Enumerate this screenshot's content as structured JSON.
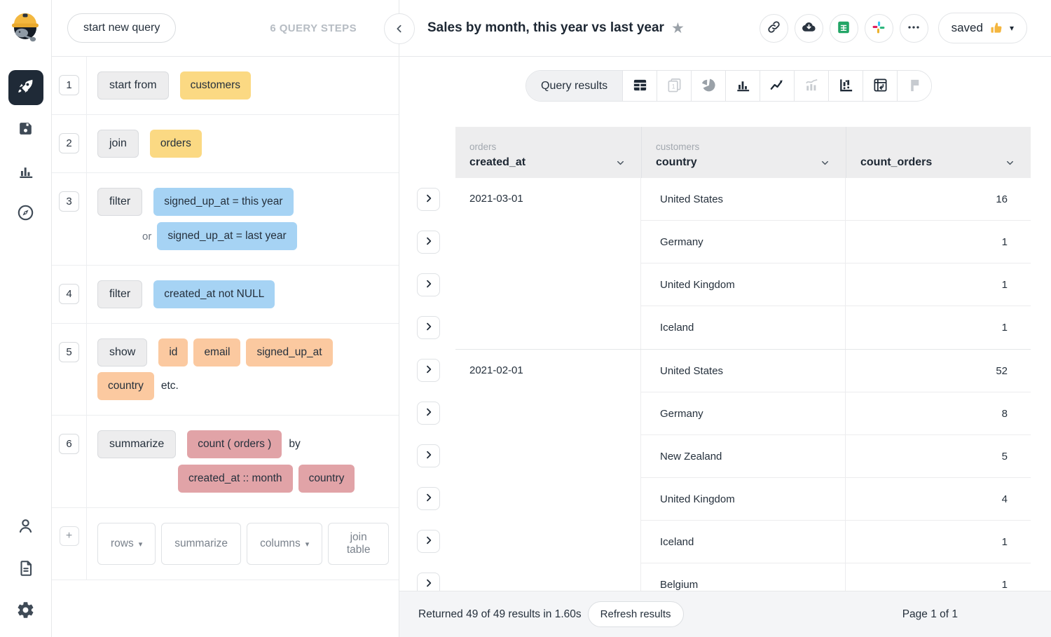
{
  "colors": {
    "yellow": "#fbd983",
    "blue": "#a6d3f4",
    "peach": "#fbc9a0",
    "rose": "#e1a3a7",
    "accent_green": "#23a566",
    "rail_active": "#1f2a37"
  },
  "rail": {
    "top_items": [
      {
        "name": "queries",
        "icon": "rocket",
        "active": true
      },
      {
        "name": "saved-items",
        "icon": "floppy",
        "active": false
      },
      {
        "name": "charts",
        "icon": "bar-chart",
        "active": false
      },
      {
        "name": "explore",
        "icon": "compass",
        "active": false
      }
    ],
    "bottom_items": [
      {
        "name": "account",
        "icon": "person"
      },
      {
        "name": "docs",
        "icon": "document"
      },
      {
        "name": "settings",
        "icon": "gear"
      }
    ]
  },
  "left_panel": {
    "new_query_label": "start new query",
    "steps_count_label": "6 QUERY STEPS",
    "steps": [
      {
        "num": "1",
        "rows": [
          {
            "keyword": "start from",
            "pills": [
              {
                "t": "customers",
                "c": "yellow"
              }
            ]
          }
        ]
      },
      {
        "num": "2",
        "rows": [
          {
            "keyword": "join",
            "pills": [
              {
                "t": "orders",
                "c": "yellow"
              }
            ]
          }
        ]
      },
      {
        "num": "3",
        "rows": [
          {
            "keyword": "filter",
            "pills": [
              {
                "t": "signed_up_at = this year",
                "c": "blue"
              }
            ]
          },
          {
            "prefix": "or",
            "indent": "sm",
            "pills": [
              {
                "t": "signed_up_at = last year",
                "c": "blue"
              }
            ]
          }
        ]
      },
      {
        "num": "4",
        "rows": [
          {
            "keyword": "filter",
            "pills": [
              {
                "t": "created_at not NULL",
                "c": "blue"
              }
            ]
          }
        ]
      },
      {
        "num": "5",
        "rows": [
          {
            "keyword": "show",
            "pills": [
              {
                "t": "id",
                "c": "peach"
              },
              {
                "t": "email",
                "c": "peach"
              },
              {
                "t": "signed_up_at",
                "c": "peach"
              },
              {
                "t": "country",
                "c": "peach"
              }
            ],
            "suffix": "etc."
          }
        ]
      },
      {
        "num": "6",
        "rows": [
          {
            "keyword": "summarize",
            "pills": [
              {
                "t": "count ( orders )",
                "c": "rose"
              }
            ],
            "suffix": "by"
          },
          {
            "indent": "lg",
            "pills": [
              {
                "t": "created_at :: month",
                "c": "rose"
              },
              {
                "t": "country",
                "c": "rose"
              }
            ]
          }
        ]
      }
    ],
    "actions": {
      "add_label": "+",
      "buttons": [
        {
          "label": "rows",
          "caret": true
        },
        {
          "label": "summarize",
          "caret": false
        },
        {
          "label": "columns",
          "caret": true
        },
        {
          "label": "join table",
          "caret": false
        }
      ]
    }
  },
  "header": {
    "title": "Sales by month, this year vs last year",
    "star": "★",
    "toolbar": [
      {
        "name": "share-link",
        "icon": "link"
      },
      {
        "name": "download",
        "icon": "cloud-down"
      },
      {
        "name": "export-sheets",
        "icon": "sheets"
      },
      {
        "name": "slack",
        "icon": "slack"
      },
      {
        "name": "more",
        "icon": "more"
      }
    ],
    "saved_button": {
      "label": "saved",
      "emoji": "thumbs-up",
      "caret": "▾"
    }
  },
  "results": {
    "tab_label": "Query results",
    "chart_types": [
      {
        "name": "table",
        "tone": "dark",
        "active": true
      },
      {
        "name": "single-value",
        "tone": "light",
        "active": false
      },
      {
        "name": "pie",
        "tone": "mid",
        "active": false
      },
      {
        "name": "bar",
        "tone": "dark",
        "active": false
      },
      {
        "name": "line",
        "tone": "dark",
        "active": false
      },
      {
        "name": "combo",
        "tone": "light",
        "active": false
      },
      {
        "name": "scatter",
        "tone": "dark",
        "active": false
      },
      {
        "name": "pivot",
        "tone": "dark",
        "active": false
      },
      {
        "name": "flag",
        "tone": "light",
        "active": false
      }
    ],
    "table": {
      "columns": [
        {
          "table": "orders",
          "name": "created_at"
        },
        {
          "table": "customers",
          "name": "country"
        },
        {
          "table": "",
          "name": "count_orders"
        }
      ],
      "groups": [
        {
          "date": "2021-03-01",
          "rows": [
            {
              "country": "United States",
              "count": "16"
            },
            {
              "country": "Germany",
              "count": "1"
            },
            {
              "country": "United Kingdom",
              "count": "1"
            },
            {
              "country": "Iceland",
              "count": "1"
            }
          ]
        },
        {
          "date": "2021-02-01",
          "rows": [
            {
              "country": "United States",
              "count": "52"
            },
            {
              "country": "Germany",
              "count": "8"
            },
            {
              "country": "New Zealand",
              "count": "5"
            },
            {
              "country": "United Kingdom",
              "count": "4"
            },
            {
              "country": "Iceland",
              "count": "1"
            },
            {
              "country": "Belgium",
              "count": "1"
            }
          ]
        }
      ]
    },
    "footer": {
      "status": "Returned 49 of 49 results in 1.60s",
      "refresh_label": "Refresh results",
      "page_label": "Page 1 of 1"
    }
  }
}
